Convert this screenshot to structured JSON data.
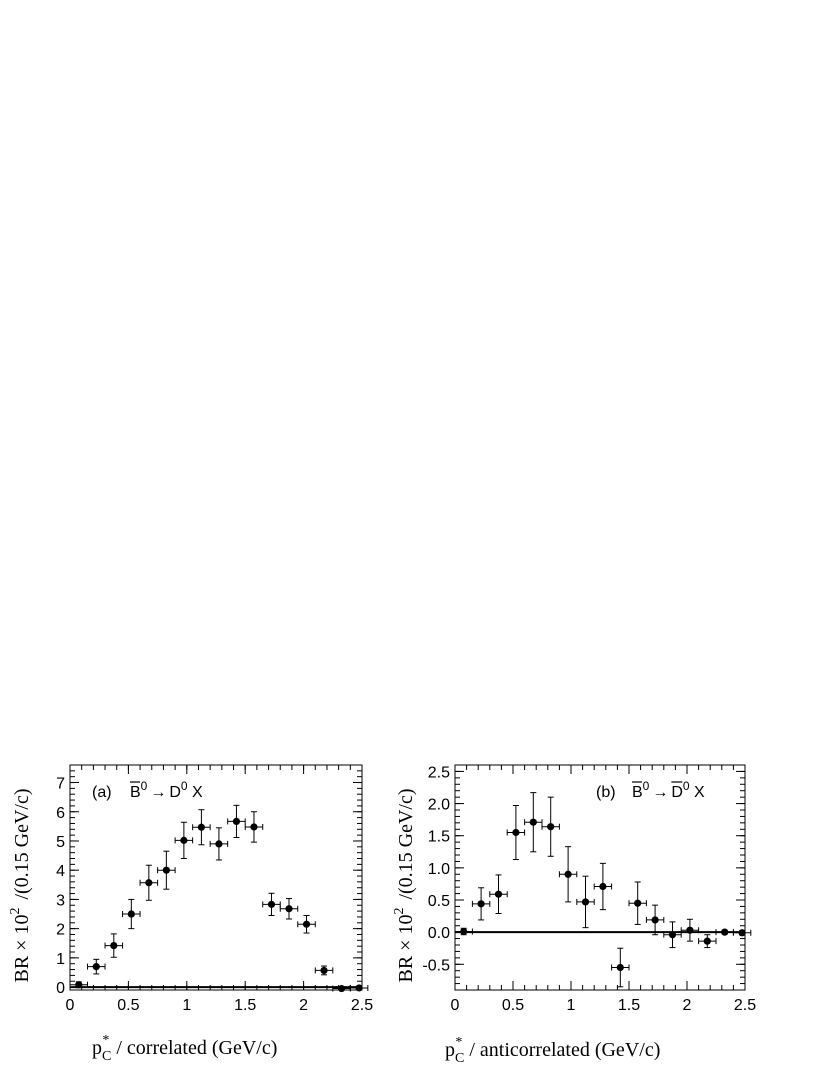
{
  "chart_data": [
    {
      "type": "scatter",
      "panel_label": "(a)",
      "decay_parts": [
        "B",
        "0",
        "→",
        "D",
        "0",
        " X"
      ],
      "xlabel": {
        "main": "p",
        "sub": "C",
        "sup": "*",
        "rest": " / correlated (GeV/c)"
      },
      "ylabel": {
        "pre": "BR × 10",
        "sup": "2",
        "post": "/(0.15 GeV/c)"
      },
      "xlim": [
        0,
        2.5
      ],
      "ylim": [
        -0.1,
        7.6
      ],
      "xticks": [
        0,
        0.5,
        1,
        1.5,
        2,
        2.5
      ],
      "xtick_labels": [
        "0",
        "0.5",
        "1",
        "1.5",
        "2",
        "2.5"
      ],
      "yticks": [
        0,
        1,
        2,
        3,
        4,
        5,
        6,
        7
      ],
      "ytick_labels": [
        "0",
        "1",
        "2",
        "3",
        "4",
        "5",
        "6",
        "7"
      ],
      "baseline": 0,
      "x_halfwidth": 0.075,
      "x": [
        0.075,
        0.225,
        0.375,
        0.525,
        0.675,
        0.825,
        0.975,
        1.125,
        1.275,
        1.425,
        1.575,
        1.725,
        1.875,
        2.025,
        2.175,
        2.325,
        2.475
      ],
      "y": [
        0.08,
        0.7,
        1.42,
        2.5,
        3.57,
        4.0,
        5.02,
        5.47,
        4.9,
        5.67,
        5.48,
        2.83,
        2.68,
        2.15,
        0.57,
        -0.05,
        -0.03
      ],
      "yerr": [
        0.1,
        0.25,
        0.4,
        0.5,
        0.6,
        0.65,
        0.62,
        0.6,
        0.55,
        0.55,
        0.52,
        0.38,
        0.35,
        0.3,
        0.15,
        0.03,
        0.03
      ]
    },
    {
      "type": "scatter",
      "panel_label": "(b)",
      "decay_parts": [
        "B",
        "0",
        "→",
        "D",
        "0",
        " X"
      ],
      "xlabel": {
        "main": "p",
        "sub": "C",
        "sup": "*",
        "rest": " / anticorrelated (GeV/c)"
      },
      "ylabel": {
        "pre": "BR × 10",
        "sup": "2",
        "post": "/(0.15 GeV/c)"
      },
      "xlim": [
        0,
        2.5
      ],
      "ylim": [
        -0.9,
        2.6
      ],
      "xticks": [
        0,
        0.5,
        1,
        1.5,
        2,
        2.5
      ],
      "xtick_labels": [
        "0",
        "0.5",
        "1",
        "1.5",
        "2",
        "2.5"
      ],
      "yticks": [
        -0.5,
        0,
        0.5,
        1,
        1.5,
        2,
        2.5
      ],
      "ytick_labels": [
        "-0.5",
        "0.0",
        "0.5",
        "1.0",
        "1.5",
        "2.0",
        "2.5"
      ],
      "baseline": 0,
      "x_halfwidth": 0.075,
      "x": [
        0.075,
        0.225,
        0.375,
        0.525,
        0.675,
        0.825,
        0.975,
        1.125,
        1.275,
        1.425,
        1.575,
        1.725,
        1.875,
        2.025,
        2.175,
        2.325,
        2.475
      ],
      "y": [
        0.01,
        0.44,
        0.59,
        1.55,
        1.71,
        1.64,
        0.9,
        0.47,
        0.71,
        -0.55,
        0.45,
        0.19,
        -0.04,
        0.03,
        -0.14,
        0.0,
        -0.01
      ],
      "yerr": [
        0.05,
        0.25,
        0.3,
        0.42,
        0.46,
        0.46,
        0.43,
        0.4,
        0.36,
        0.3,
        0.33,
        0.23,
        0.2,
        0.17,
        0.1,
        0.03,
        0.03
      ]
    }
  ]
}
